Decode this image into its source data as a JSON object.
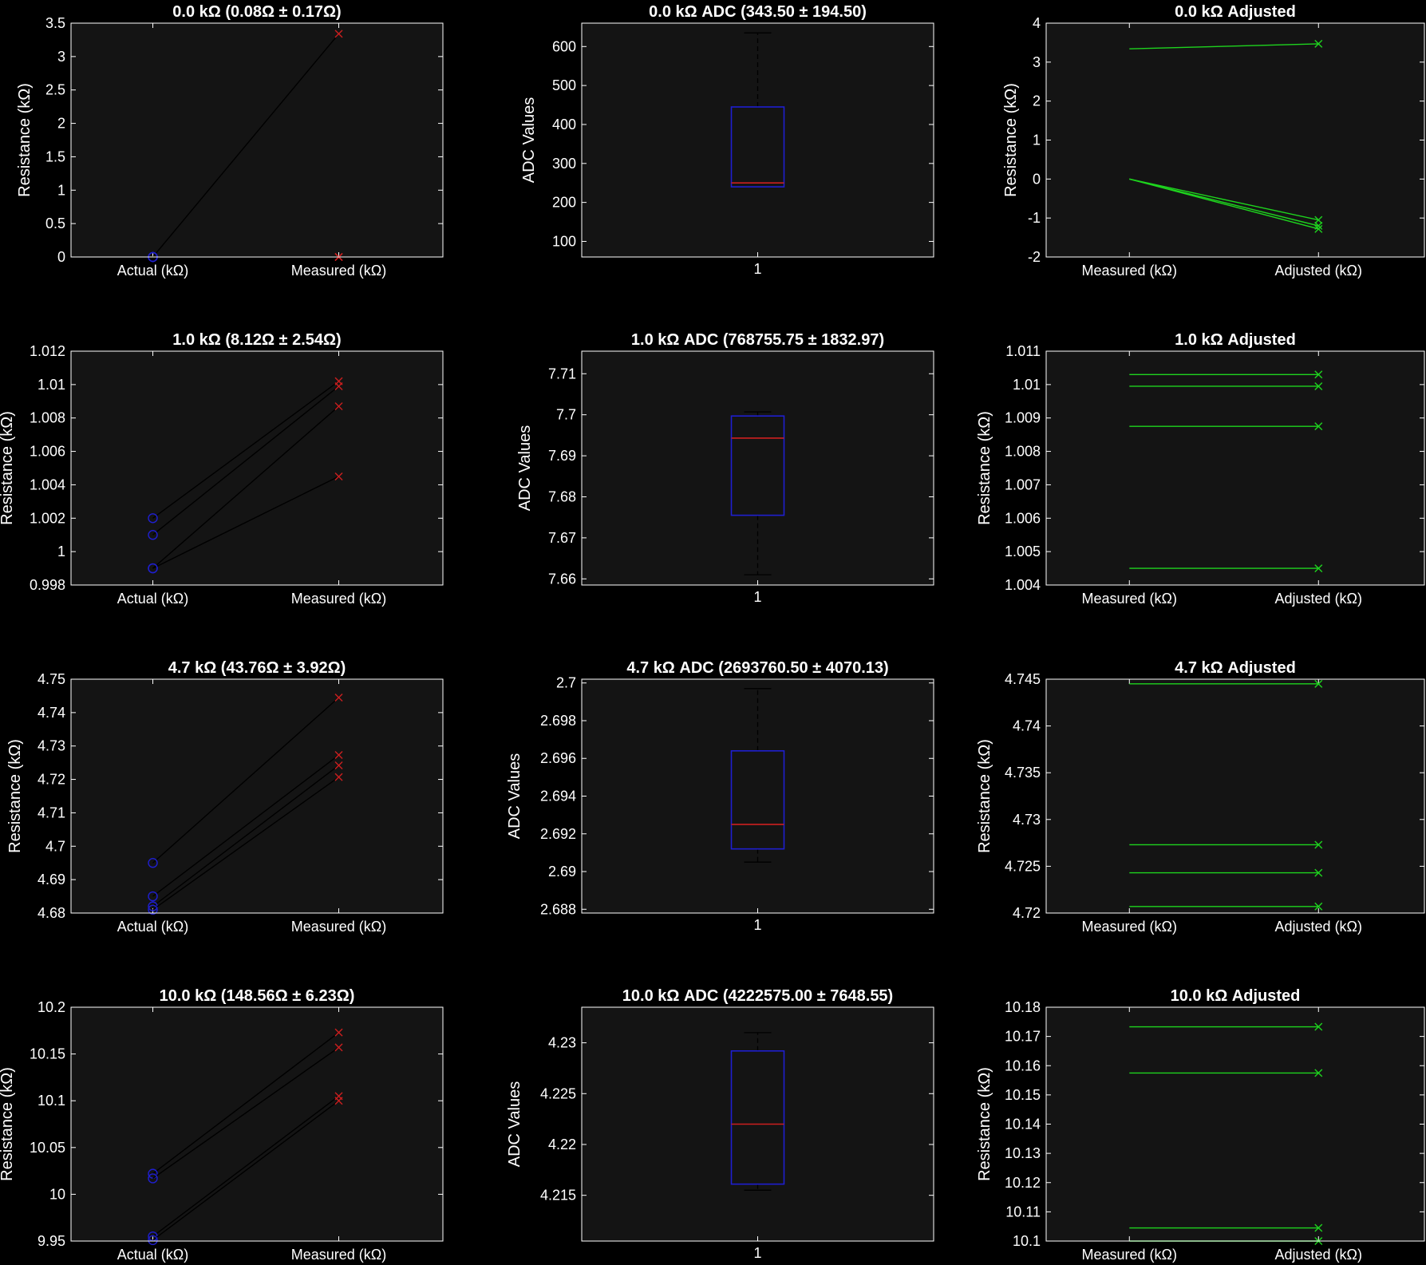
{
  "figure": {
    "background": "#000000",
    "axes_background": "#141414",
    "axes_color": "#ffffff"
  },
  "chart_data": [
    {
      "id": "r0c0",
      "type": "line",
      "title": "0.0 kΩ (0.08Ω ± 0.17Ω)",
      "xlabel": "",
      "ylabel": "Resistance (kΩ)",
      "categories": [
        "Actual (kΩ)",
        "Measured (kΩ)"
      ],
      "ylim": [
        0,
        3.5
      ],
      "yticks": [
        "0",
        "0.5",
        "1",
        "1.5",
        "2",
        "2.5",
        "3",
        "3.5"
      ],
      "series": [
        {
          "values": [
            0.0,
            3.34
          ]
        },
        {
          "values": [
            0.0,
            0.0
          ]
        },
        {
          "values": [
            0.0,
            0.0
          ]
        },
        {
          "values": [
            0.0,
            0.0
          ]
        }
      ],
      "line_color": "#000000",
      "marker_start": "circle",
      "marker_start_color": "#1f1fd0",
      "marker_end": "x",
      "marker_end_color": "#cc1f1f"
    },
    {
      "id": "r0c1",
      "type": "box",
      "title": "0.0 kΩ ADC (343.50 ± 194.50)",
      "xlabel": "",
      "ylabel": "ADC Values",
      "categories": [
        "1"
      ],
      "ylim": [
        60,
        660
      ],
      "yticks": [
        "100",
        "200",
        "300",
        "400",
        "500",
        "600"
      ],
      "box": {
        "whisker_low": 240,
        "q1": 240,
        "median": 250,
        "q3": 445,
        "whisker_high": 635
      },
      "box_color": "#1f1fd0",
      "median_color": "#cc1f1f",
      "whisker_color": "#000000"
    },
    {
      "id": "r0c2",
      "type": "line",
      "title": "0.0 kΩ Adjusted",
      "xlabel": "",
      "ylabel": "Resistance (kΩ)",
      "categories": [
        "Measured (kΩ)",
        "Adjusted (kΩ)"
      ],
      "ylim": [
        -2,
        4
      ],
      "yticks": [
        "-2",
        "-1",
        "0",
        "1",
        "2",
        "3",
        "4"
      ],
      "series": [
        {
          "values": [
            3.34,
            3.47
          ]
        },
        {
          "values": [
            0.0,
            -1.05
          ]
        },
        {
          "values": [
            0.0,
            -1.2
          ]
        },
        {
          "values": [
            0.0,
            -1.28
          ]
        }
      ],
      "line_color": "#1ed41e",
      "marker_end": "x",
      "marker_end_color": "#1ed41e"
    },
    {
      "id": "r1c0",
      "type": "line",
      "title": "1.0 kΩ (8.12Ω ± 2.54Ω)",
      "xlabel": "",
      "ylabel": "Resistance (kΩ)",
      "categories": [
        "Actual (kΩ)",
        "Measured (kΩ)"
      ],
      "ylim": [
        0.998,
        1.012
      ],
      "yticks": [
        "0.998",
        "1",
        "1.002",
        "1.004",
        "1.006",
        "1.008",
        "1.01",
        "1.012"
      ],
      "series": [
        {
          "values": [
            1.002,
            1.0102
          ]
        },
        {
          "values": [
            1.001,
            1.0099
          ]
        },
        {
          "values": [
            0.999,
            1.0087
          ]
        },
        {
          "values": [
            0.999,
            1.0045
          ]
        }
      ],
      "line_color": "#000000",
      "marker_start": "circle",
      "marker_start_color": "#1f1fd0",
      "marker_end": "x",
      "marker_end_color": "#cc1f1f"
    },
    {
      "id": "r1c1",
      "type": "box",
      "title": "1.0 kΩ ADC (768755.75 ± 1832.97)",
      "xlabel": "",
      "ylabel": "ADC Values",
      "categories": [
        "1"
      ],
      "ylim": [
        7.6585,
        7.7155
      ],
      "yticks": [
        "7.66",
        "7.67",
        "7.68",
        "7.69",
        "7.7",
        "7.71"
      ],
      "box": {
        "whisker_low": 7.661,
        "q1": 7.6755,
        "median": 7.6943,
        "q3": 7.6997,
        "whisker_high": 7.7007
      },
      "box_color": "#1f1fd0",
      "median_color": "#cc1f1f",
      "whisker_color": "#000000"
    },
    {
      "id": "r1c2",
      "type": "line",
      "title": "1.0 kΩ Adjusted",
      "xlabel": "",
      "ylabel": "Resistance (kΩ)",
      "categories": [
        "Measured (kΩ)",
        "Adjusted (kΩ)"
      ],
      "ylim": [
        1.004,
        1.011
      ],
      "yticks": [
        "1.004",
        "1.005",
        "1.006",
        "1.007",
        "1.008",
        "1.009",
        "1.01",
        "1.011"
      ],
      "series": [
        {
          "values": [
            1.0103,
            1.0103
          ]
        },
        {
          "values": [
            1.00995,
            1.00995
          ]
        },
        {
          "values": [
            1.00875,
            1.00875
          ]
        },
        {
          "values": [
            1.0045,
            1.0045
          ]
        }
      ],
      "line_color": "#1ed41e",
      "marker_end": "x",
      "marker_end_color": "#1ed41e"
    },
    {
      "id": "r2c0",
      "type": "line",
      "title": "4.7 kΩ (43.76Ω ± 3.92Ω)",
      "xlabel": "",
      "ylabel": "Resistance (kΩ)",
      "categories": [
        "Actual (kΩ)",
        "Measured (kΩ)"
      ],
      "ylim": [
        4.68,
        4.75
      ],
      "yticks": [
        "4.68",
        "4.69",
        "4.7",
        "4.71",
        "4.72",
        "4.73",
        "4.74",
        "4.75"
      ],
      "series": [
        {
          "values": [
            4.695,
            4.7445
          ]
        },
        {
          "values": [
            4.685,
            4.7273
          ]
        },
        {
          "values": [
            4.682,
            4.7242
          ]
        },
        {
          "values": [
            4.681,
            4.7207
          ]
        }
      ],
      "line_color": "#000000",
      "marker_start": "circle",
      "marker_start_color": "#1f1fd0",
      "marker_end": "x",
      "marker_end_color": "#cc1f1f"
    },
    {
      "id": "r2c1",
      "type": "box",
      "title": "4.7 kΩ ADC (2693760.50 ± 4070.13)",
      "xlabel": "",
      "ylabel": "ADC Values",
      "categories": [
        "1"
      ],
      "ylim": [
        2.6878,
        2.7002
      ],
      "yticks": [
        "2.688",
        "2.69",
        "2.692",
        "2.694",
        "2.696",
        "2.698",
        "2.7"
      ],
      "box": {
        "whisker_low": 2.6905,
        "q1": 2.6912,
        "median": 2.6925,
        "q3": 2.6964,
        "whisker_high": 2.6997
      },
      "box_color": "#1f1fd0",
      "median_color": "#cc1f1f",
      "whisker_color": "#000000"
    },
    {
      "id": "r2c2",
      "type": "line",
      "title": "4.7 kΩ Adjusted",
      "xlabel": "",
      "ylabel": "Resistance (kΩ)",
      "categories": [
        "Measured (kΩ)",
        "Adjusted (kΩ)"
      ],
      "ylim": [
        4.72,
        4.745
      ],
      "yticks": [
        "4.72",
        "4.725",
        "4.73",
        "4.735",
        "4.74",
        "4.745"
      ],
      "series": [
        {
          "values": [
            4.7445,
            4.7445
          ]
        },
        {
          "values": [
            4.7273,
            4.7273
          ]
        },
        {
          "values": [
            4.7243,
            4.7243
          ]
        },
        {
          "values": [
            4.7207,
            4.7207
          ]
        }
      ],
      "line_color": "#1ed41e",
      "marker_end": "x",
      "marker_end_color": "#1ed41e"
    },
    {
      "id": "r3c0",
      "type": "line",
      "title": "10.0 kΩ (148.56Ω ± 6.23Ω)",
      "xlabel": "",
      "ylabel": "Resistance (kΩ)",
      "categories": [
        "Actual (kΩ)",
        "Measured (kΩ)"
      ],
      "ylim": [
        9.95,
        10.2
      ],
      "yticks": [
        "9.95",
        "10",
        "10.05",
        "10.1",
        "10.15",
        "10.2"
      ],
      "series": [
        {
          "values": [
            10.022,
            10.173
          ]
        },
        {
          "values": [
            10.017,
            10.157
          ]
        },
        {
          "values": [
            9.955,
            10.105
          ]
        },
        {
          "values": [
            9.951,
            10.1
          ]
        }
      ],
      "line_color": "#000000",
      "marker_start": "circle",
      "marker_start_color": "#1f1fd0",
      "marker_end": "x",
      "marker_end_color": "#cc1f1f"
    },
    {
      "id": "r3c1",
      "type": "box",
      "title": "10.0 kΩ ADC (4222575.00 ± 7648.55)",
      "xlabel": "",
      "ylabel": "ADC Values",
      "categories": [
        "1"
      ],
      "ylim": [
        4.2105,
        4.2335
      ],
      "yticks": [
        "4.215",
        "4.22",
        "4.225",
        "4.23"
      ],
      "box": {
        "whisker_low": 4.2155,
        "q1": 4.2161,
        "median": 4.222,
        "q3": 4.2292,
        "whisker_high": 4.231
      },
      "box_color": "#1f1fd0",
      "median_color": "#cc1f1f",
      "whisker_color": "#000000"
    },
    {
      "id": "r3c2",
      "type": "line",
      "title": "10.0 kΩ Adjusted",
      "xlabel": "",
      "ylabel": "Resistance (kΩ)",
      "categories": [
        "Measured (kΩ)",
        "Adjusted (kΩ)"
      ],
      "ylim": [
        10.1,
        10.18
      ],
      "yticks": [
        "10.1",
        "10.11",
        "10.12",
        "10.13",
        "10.14",
        "10.15",
        "10.16",
        "10.17",
        "10.18"
      ],
      "series": [
        {
          "values": [
            10.1733,
            10.1733
          ]
        },
        {
          "values": [
            10.1575,
            10.1575
          ]
        },
        {
          "values": [
            10.1045,
            10.1045
          ]
        },
        {
          "values": [
            10.1,
            10.1
          ]
        }
      ],
      "line_color": "#1ed41e",
      "marker_end": "x",
      "marker_end_color": "#1ed41e"
    }
  ]
}
